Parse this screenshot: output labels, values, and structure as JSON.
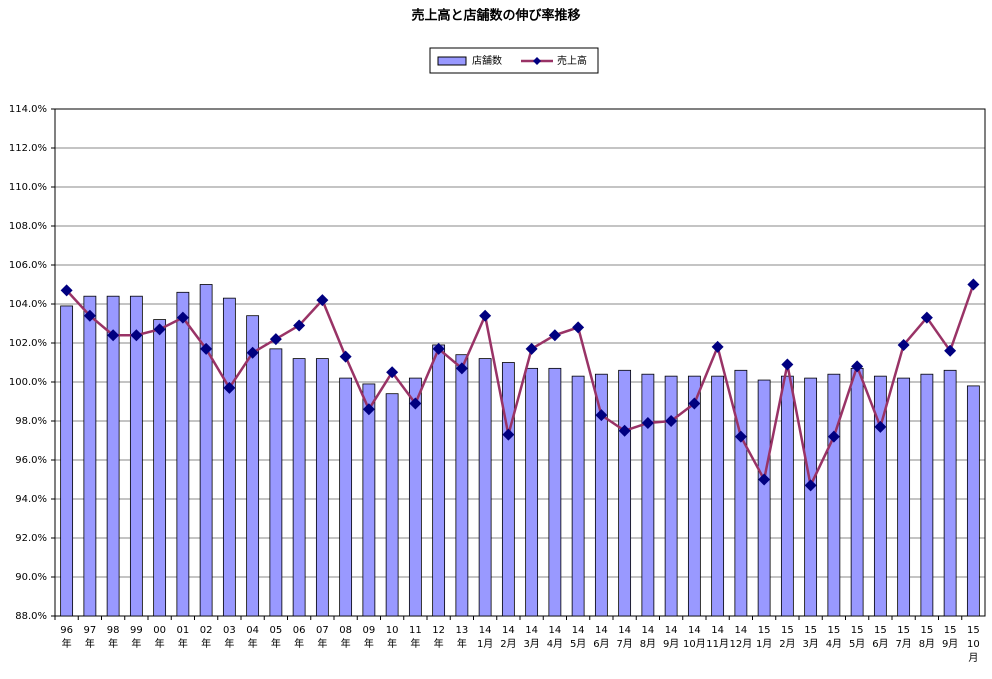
{
  "chart_data": {
    "type": "bar",
    "title": "売上高と店舗数の伸び率推移",
    "categories": [
      "96\n年",
      "97\n年",
      "98\n年",
      "99\n年",
      "00\n年",
      "01\n年",
      "02\n年",
      "03\n年",
      "04\n年",
      "05\n年",
      "06\n年",
      "07\n年",
      "08\n年",
      "09\n年",
      "10\n年",
      "11\n年",
      "12\n年",
      "13\n年",
      "14\n1月",
      "14\n2月",
      "14\n3月",
      "14\n4月",
      "14\n5月",
      "14\n6月",
      "14\n7月",
      "14\n8月",
      "14\n9月",
      "14\n10月",
      "14\n11月",
      "14\n12月",
      "15\n1月",
      "15\n2月",
      "15\n3月",
      "15\n4月",
      "15\n5月",
      "15\n6月",
      "15\n7月",
      "15\n8月",
      "15\n9月",
      "15\n10\n月"
    ],
    "series": [
      {
        "name": "店舗数",
        "type": "bar",
        "color": "#9999ff",
        "values": [
          103.9,
          104.4,
          104.4,
          104.4,
          103.2,
          104.6,
          105.0,
          104.3,
          103.4,
          101.7,
          101.2,
          101.2,
          100.2,
          99.9,
          99.4,
          100.2,
          101.9,
          101.4,
          101.2,
          101.0,
          100.7,
          100.7,
          100.3,
          100.4,
          100.6,
          100.4,
          100.3,
          100.3,
          100.3,
          100.6,
          100.1,
          100.3,
          100.2,
          100.4,
          100.7,
          100.3,
          100.2,
          100.4,
          100.6,
          99.8
        ]
      },
      {
        "name": "売上高",
        "type": "line",
        "color": "#993366",
        "marker_color": "#000080",
        "values": [
          104.7,
          103.4,
          102.4,
          102.4,
          102.7,
          103.3,
          101.7,
          99.7,
          101.5,
          102.2,
          102.9,
          104.2,
          101.3,
          98.6,
          100.5,
          98.9,
          101.7,
          100.7,
          103.4,
          97.3,
          101.7,
          102.4,
          102.8,
          98.3,
          97.5,
          97.9,
          98.0,
          98.9,
          101.8,
          97.2,
          95.0,
          100.9,
          94.7,
          97.2,
          100.8,
          97.7,
          101.9,
          103.3,
          101.6,
          105.0
        ]
      }
    ],
    "ylim": [
      88,
      114
    ],
    "yticks": [
      {
        "value": 88,
        "label": "88.0%"
      },
      {
        "value": 90,
        "label": "90.0%"
      },
      {
        "value": 92,
        "label": "92.0%"
      },
      {
        "value": 94,
        "label": "94.0%"
      },
      {
        "value": 96,
        "label": "96.0%"
      },
      {
        "value": 98,
        "label": "98.0%"
      },
      {
        "value": 100,
        "label": "100.0%"
      },
      {
        "value": 102,
        "label": "102.0%"
      },
      {
        "value": 104,
        "label": "104.0%"
      },
      {
        "value": 106,
        "label": "106.0%"
      },
      {
        "value": 108,
        "label": "108.0%"
      },
      {
        "value": 110,
        "label": "110.0%"
      },
      {
        "value": 112,
        "label": "112.0%"
      },
      {
        "value": 114,
        "label": "114.0%"
      }
    ],
    "grid": true,
    "legend": "top"
  }
}
